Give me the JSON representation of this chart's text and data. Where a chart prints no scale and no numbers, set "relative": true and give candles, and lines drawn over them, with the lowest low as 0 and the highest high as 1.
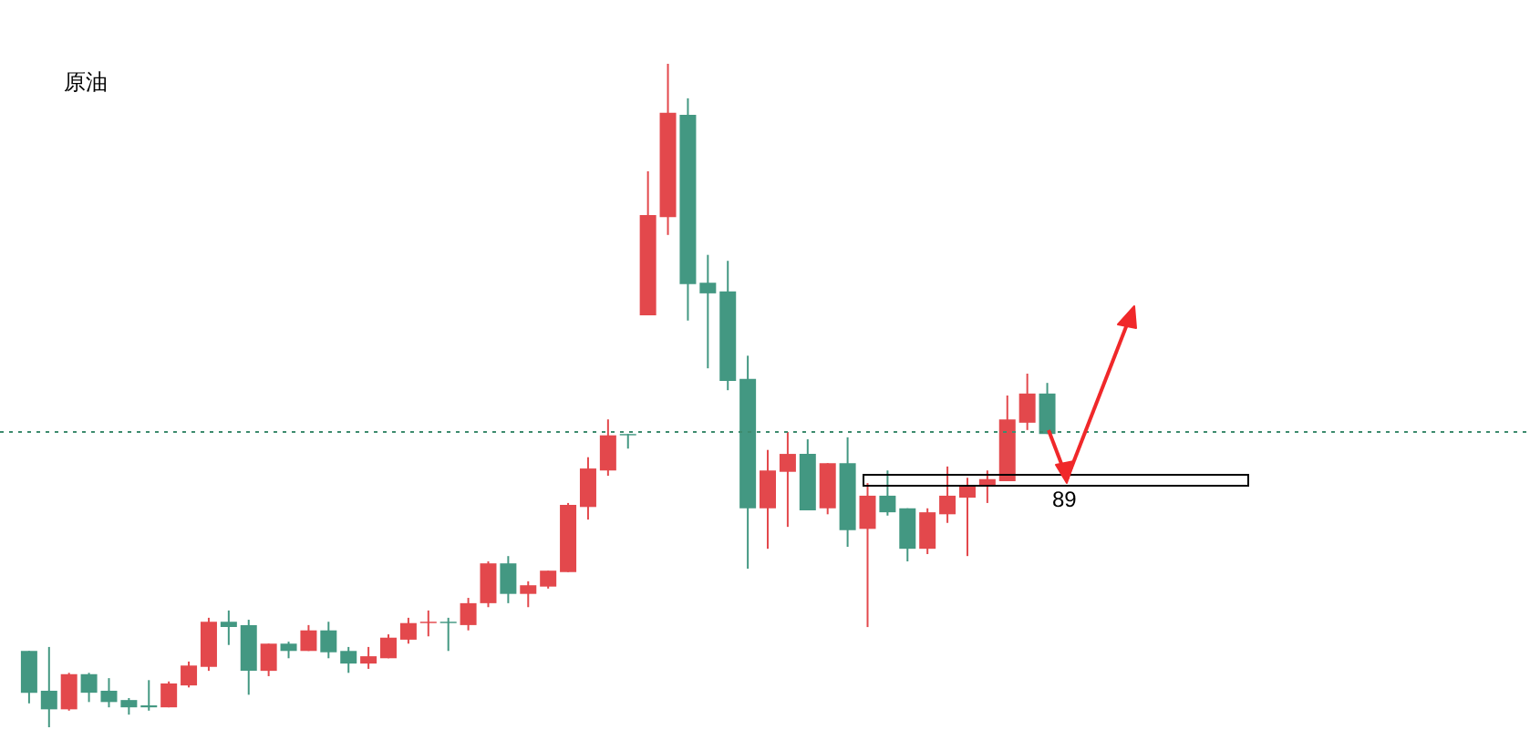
{
  "chart_data": {
    "type": "candlestick",
    "title": "原油",
    "relative": true,
    "categories": [
      null,
      null,
      null,
      null,
      null,
      null,
      null,
      null,
      null,
      null,
      null,
      null,
      null,
      null,
      null,
      null,
      null,
      null,
      null,
      null,
      null,
      null,
      null,
      null,
      null,
      null,
      null,
      null,
      null,
      null,
      null,
      null,
      null,
      null,
      null,
      null,
      null,
      null,
      null,
      null,
      null,
      null,
      null,
      null,
      null,
      null,
      null,
      null,
      null,
      null,
      null,
      null
    ],
    "ohlc": [
      [
        0.115,
        0.115,
        0.036,
        0.052
      ],
      [
        0.055,
        0.121,
        0,
        0.027
      ],
      [
        0.027,
        0.082,
        0.025,
        0.08
      ],
      [
        0.08,
        0.082,
        0.038,
        0.052
      ],
      [
        0.055,
        0.074,
        0.03,
        0.038
      ],
      [
        0.041,
        0.044,
        0.019,
        0.03
      ],
      [
        0.033,
        0.071,
        0.025,
        0.03
      ],
      [
        0.03,
        0.069,
        0.03,
        0.066
      ],
      [
        0.063,
        0.099,
        0.06,
        0.093
      ],
      [
        0.091,
        0.165,
        0.085,
        0.159
      ],
      [
        0.159,
        0.176,
        0.124,
        0.151
      ],
      [
        0.154,
        0.162,
        0.049,
        0.085
      ],
      [
        0.085,
        0.126,
        0.077,
        0.126
      ],
      [
        0.126,
        0.129,
        0.104,
        0.115
      ],
      [
        0.115,
        0.154,
        0.115,
        0.146
      ],
      [
        0.146,
        0.159,
        0.104,
        0.113
      ],
      [
        0.115,
        0.121,
        0.082,
        0.096
      ],
      [
        0.096,
        0.121,
        0.088,
        0.107
      ],
      [
        0.104,
        0.14,
        0.104,
        0.135
      ],
      [
        0.132,
        0.165,
        0.126,
        0.157
      ],
      [
        0.157,
        0.176,
        0.137,
        0.159
      ],
      [
        0.159,
        0.165,
        0.115,
        0.157
      ],
      [
        0.154,
        0.195,
        0.146,
        0.187
      ],
      [
        0.187,
        0.25,
        0.181,
        0.247
      ],
      [
        0.247,
        0.258,
        0.187,
        0.201
      ],
      [
        0.201,
        0.22,
        0.181,
        0.214
      ],
      [
        0.212,
        0.236,
        0.209,
        0.236
      ],
      [
        0.234,
        0.338,
        0.234,
        0.335
      ],
      [
        0.332,
        0.407,
        0.313,
        0.39
      ],
      [
        0.387,
        0.464,
        0.379,
        0.44
      ],
      [
        0.442,
        0.442,
        0.42,
        0.44
      ],
      [
        0.621,
        0.838,
        0.621,
        0.772
      ],
      [
        0.769,
        1,
        0.742,
        0.926
      ],
      [
        0.923,
        0.948,
        0.613,
        0.668
      ],
      [
        0.67,
        0.712,
        0.541,
        0.654
      ],
      [
        0.657,
        0.703,
        0.508,
        0.522
      ],
      [
        0.525,
        0.56,
        0.239,
        0.33
      ],
      [
        0.33,
        0.418,
        0.269,
        0.387
      ],
      [
        0.385,
        0.445,
        0.302,
        0.412
      ],
      [
        0.412,
        0.434,
        0.327,
        0.327
      ],
      [
        0.33,
        0.398,
        0.321,
        0.398
      ],
      [
        0.398,
        0.437,
        0.272,
        0.297
      ],
      [
        0.299,
        0.368,
        0.151,
        0.349
      ],
      [
        0.349,
        0.387,
        0.319,
        0.324
      ],
      [
        0.33,
        0.33,
        0.25,
        0.269
      ],
      [
        0.269,
        0.33,
        0.261,
        0.324
      ],
      [
        0.321,
        0.393,
        0.308,
        0.349
      ],
      [
        0.346,
        0.376,
        0.258,
        0.363
      ],
      [
        0.365,
        0.387,
        0.338,
        0.374
      ],
      [
        0.371,
        0.5,
        0.371,
        0.464
      ],
      [
        0.459,
        0.533,
        0.448,
        0.503
      ],
      [
        0.503,
        0.519,
        0.442,
        0.442
      ]
    ],
    "colors": [
      "#439882",
      "#439882",
      "#e3484c",
      "#439882",
      "#439882",
      "#439882",
      "#439882",
      "#e3484c",
      "#e3484c",
      "#e3484c",
      "#439882",
      "#439882",
      "#e3484c",
      "#439882",
      "#e3484c",
      "#439882",
      "#439882",
      "#e3484c",
      "#e3484c",
      "#e3484c",
      "#e3484c",
      "#439882",
      "#e3484c",
      "#e3484c",
      "#439882",
      "#e3484c",
      "#e3484c",
      "#e3484c",
      "#e3484c",
      "#e3484c",
      "#439882",
      "#e3484c",
      "#e3484c",
      "#439882",
      "#439882",
      "#439882",
      "#439882",
      "#e3484c",
      "#e3484c",
      "#439882",
      "#e3484c",
      "#439882",
      "#e3484c",
      "#439882",
      "#439882",
      "#e3484c",
      "#e3484c",
      "#e3484c",
      "#e3484c",
      "#e3484c",
      "#e3484c",
      "#439882"
    ],
    "ref_lines": [
      {
        "axis": "y",
        "value": 0.445,
        "color": "#3d8b6e",
        "line_style": "dotted"
      }
    ],
    "annotations": [
      "89"
    ]
  }
}
